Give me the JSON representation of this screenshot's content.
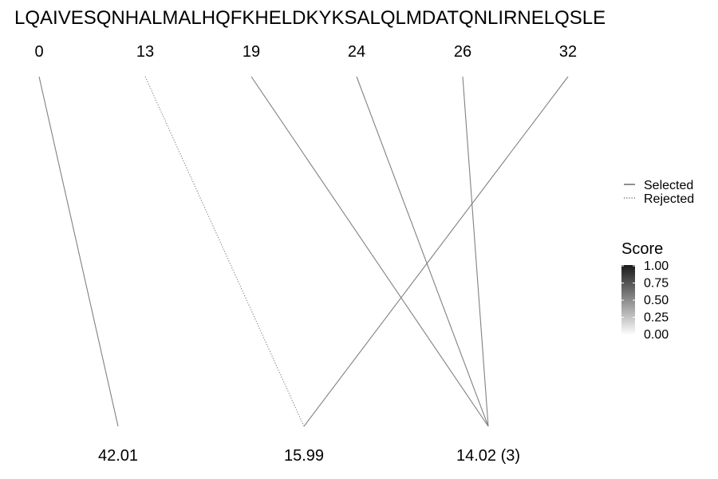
{
  "chart_data": {
    "type": "diagram",
    "sequence": "LQAIVESQNHALMALHQFKHELDKYKSALQLMDATQNLIRNELQSLE",
    "top_positions": [
      "0",
      "13",
      "19",
      "24",
      "26",
      "32"
    ],
    "bottom_labels": [
      "42.01",
      "15.99",
      "14.02 (3)"
    ],
    "links": [
      {
        "from": "0",
        "to": "42.01",
        "status": "Selected",
        "score": 0.55
      },
      {
        "from": "13",
        "to": "15.99",
        "status": "Rejected",
        "score": 0.55
      },
      {
        "from": "19",
        "to": "14.02 (3)",
        "status": "Selected",
        "score": 0.55
      },
      {
        "from": "24",
        "to": "14.02 (3)",
        "status": "Selected",
        "score": 0.55
      },
      {
        "from": "26",
        "to": "14.02 (3)",
        "status": "Selected",
        "score": 0.55
      },
      {
        "from": "32",
        "to": "15.99",
        "status": "Selected",
        "score": 0.55
      }
    ],
    "legend_linetype": [
      {
        "label": "Selected",
        "style": "solid"
      },
      {
        "label": "Rejected",
        "style": "dotted"
      }
    ],
    "legend_score": {
      "title": "Score",
      "ticks": [
        "1.00",
        "0.75",
        "0.50",
        "0.25",
        "0.00"
      ],
      "color_high": "#1a1a1a",
      "color_low": "#ffffff"
    }
  }
}
